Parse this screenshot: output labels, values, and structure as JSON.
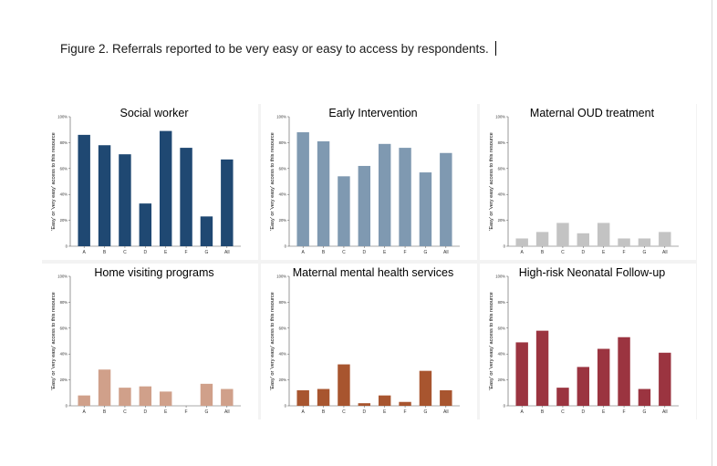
{
  "caption": "Figure 2. Referrals reported to be very easy or easy to access by respondents.",
  "chart_data": [
    {
      "type": "bar",
      "title": "Social worker",
      "ylabel": "'Easy' or 'very easy' access to this resource",
      "categories": [
        "A",
        "B",
        "C",
        "D",
        "E",
        "F",
        "G",
        "All"
      ],
      "values": [
        86,
        78,
        71,
        33,
        89,
        76,
        23,
        67
      ],
      "ylim": [
        0,
        100
      ],
      "yticks": [
        "0",
        "20%",
        "40%",
        "60%",
        "80%",
        "100%"
      ],
      "color": "#1f4872"
    },
    {
      "type": "bar",
      "title": "Early Intervention",
      "ylabel": "'Easy' or 'very easy' access to this resource",
      "categories": [
        "A",
        "B",
        "C",
        "D",
        "E",
        "F",
        "G",
        "All"
      ],
      "values": [
        88,
        81,
        54,
        62,
        79,
        76,
        57,
        72
      ],
      "ylim": [
        0,
        100
      ],
      "yticks": [
        "0",
        "20%",
        "40%",
        "60%",
        "80%",
        "100%"
      ],
      "color": "#7f99b1"
    },
    {
      "type": "bar",
      "title": "Maternal OUD treatment",
      "ylabel": "'Easy' or 'very easy' access to this resource",
      "categories": [
        "A",
        "B",
        "C",
        "D",
        "E",
        "F",
        "G",
        "All"
      ],
      "values": [
        6,
        11,
        18,
        10,
        18,
        6,
        6,
        11
      ],
      "ylim": [
        0,
        100
      ],
      "yticks": [
        "0",
        "20%",
        "40%",
        "60%",
        "80%",
        "100%"
      ],
      "color": "#c3c3c3"
    },
    {
      "type": "bar",
      "title": "Home visiting programs",
      "ylabel": "'Easy' or 'very easy' access to this resource",
      "categories": [
        "A",
        "B",
        "C",
        "D",
        "E",
        "F",
        "G",
        "All"
      ],
      "values": [
        8,
        28,
        14,
        15,
        11,
        0,
        17,
        13
      ],
      "ylim": [
        0,
        100
      ],
      "yticks": [
        "0",
        "20%",
        "40%",
        "60%",
        "80%",
        "100%"
      ],
      "color": "#d0a08a"
    },
    {
      "type": "bar",
      "title": "Maternal mental health services",
      "ylabel": "'Easy' or 'very easy' access to this resource",
      "categories": [
        "A",
        "B",
        "C",
        "D",
        "E",
        "F",
        "G",
        "All"
      ],
      "values": [
        12,
        13,
        32,
        2,
        8,
        3,
        27,
        12
      ],
      "ylim": [
        0,
        100
      ],
      "yticks": [
        "0",
        "20%",
        "40%",
        "60%",
        "80%",
        "100%"
      ],
      "color": "#a8552f"
    },
    {
      "type": "bar",
      "title": "High-risk Neonatal Follow-up",
      "ylabel": "'Easy' or 'very easy' access to this resource",
      "categories": [
        "A",
        "B",
        "C",
        "D",
        "E",
        "F",
        "G",
        "All"
      ],
      "values": [
        49,
        58,
        14,
        30,
        44,
        53,
        13,
        41
      ],
      "ylim": [
        0,
        100
      ],
      "yticks": [
        "0",
        "20%",
        "40%",
        "60%",
        "80%",
        "100%"
      ],
      "color": "#9b3440"
    }
  ]
}
